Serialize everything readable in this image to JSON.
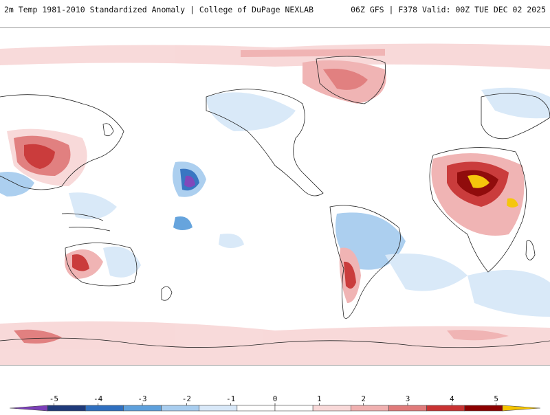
{
  "header": {
    "title": "2m Temp 1981-2010 Standardized Anomaly | College of DuPage NEXLAB",
    "run_info": "06Z GFS | F378 Valid: 00Z TUE DEC 02 2025"
  },
  "colorbar": {
    "ticks": [
      "-5",
      "-4",
      "-3",
      "-2",
      "-1",
      "0",
      "1",
      "2",
      "3",
      "4",
      "5"
    ],
    "min": -6,
    "max": 6,
    "colors": [
      "#7b3fb8",
      "#1f3a7a",
      "#2f6fbf",
      "#5ea0dc",
      "#a8cdef",
      "#d8e8f8",
      "#ffffff",
      "#ffffff",
      "#f8d8d8",
      "#f0b0b0",
      "#e07a7a",
      "#c83232",
      "#8b0000",
      "#f5c400"
    ]
  },
  "colors": {
    "warm_light": "#f8d8d8",
    "warm_mid": "#f0b0b0",
    "warm_strong": "#e07a7a",
    "warm_dark": "#c83232",
    "warm_extreme": "#8b0000",
    "warm_peak": "#f5c400",
    "cool_light": "#d8e8f8",
    "cool_mid": "#a8cdef",
    "cool_strong": "#5ea0dc",
    "cool_dark": "#2f6fbf",
    "cool_extreme": "#7b3fb8",
    "coastline": "#222222"
  }
}
